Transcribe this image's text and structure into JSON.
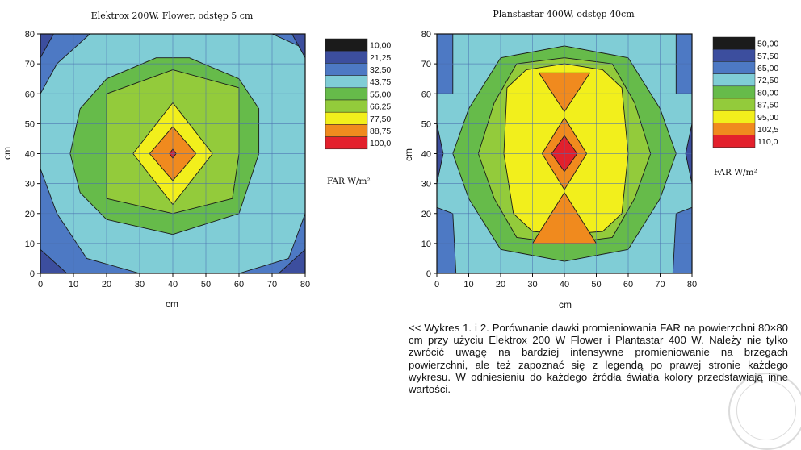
{
  "chart_data": [
    {
      "type": "heatmap",
      "subtype": "filled-contour",
      "title": "Elektrox 200W, Flower, odstęp 5 cm",
      "xlabel": "cm",
      "ylabel": "cm",
      "xlim": [
        0,
        80
      ],
      "ylim": [
        0,
        80
      ],
      "x_ticks": [
        0,
        10,
        20,
        30,
        40,
        50,
        60,
        70,
        80
      ],
      "y_ticks": [
        0,
        10,
        20,
        30,
        40,
        50,
        60,
        70,
        80
      ],
      "grid": true,
      "legend_position": "right",
      "legend_unit_label": "FAR W/m²",
      "levels": [
        "10,00",
        "21,25",
        "32,50",
        "43,75",
        "55,00",
        "66,25",
        "77,50",
        "88,75",
        "100,0"
      ],
      "level_colors": [
        "#1b1b1b",
        "#3c4e9e",
        "#4d79c4",
        "#80cdd6",
        "#66bb4a",
        "#93cb3b",
        "#f2ef1c",
        "#f08a1e",
        "#e3202c"
      ],
      "fill_regions": [
        {
          "level_index": 2,
          "points": [
            [
              0,
              0
            ],
            [
              80,
              0
            ],
            [
              80,
              80
            ],
            [
              0,
              80
            ]
          ]
        },
        {
          "level_index": 3,
          "points": [
            [
              0,
              35
            ],
            [
              5,
              20
            ],
            [
              14,
              5
            ],
            [
              30,
              0
            ],
            [
              60,
              0
            ],
            [
              75,
              5
            ],
            [
              80,
              20
            ],
            [
              80,
              75
            ],
            [
              70,
              80
            ],
            [
              15,
              80
            ],
            [
              5,
              70
            ],
            [
              0,
              60
            ]
          ]
        },
        {
          "level_index": 4,
          "points": [
            [
              9,
              40
            ],
            [
              12,
              27
            ],
            [
              20,
              18
            ],
            [
              40,
              13
            ],
            [
              60,
              20
            ],
            [
              66,
              40
            ],
            [
              66,
              55
            ],
            [
              60,
              65
            ],
            [
              45,
              72
            ],
            [
              35,
              72
            ],
            [
              20,
              65
            ],
            [
              12,
              55
            ]
          ]
        },
        {
          "level_index": 5,
          "points": [
            [
              20,
              40
            ],
            [
              20,
              25
            ],
            [
              40,
              20
            ],
            [
              58,
              25
            ],
            [
              60,
              40
            ],
            [
              60,
              62
            ],
            [
              40,
              68
            ],
            [
              20,
              60
            ]
          ]
        },
        {
          "level_index": 6,
          "points": [
            [
              28,
              40
            ],
            [
              40,
              57
            ],
            [
              52,
              40
            ],
            [
              40,
              23
            ]
          ]
        },
        {
          "level_index": 7,
          "points": [
            [
              33,
              40
            ],
            [
              40,
              49
            ],
            [
              47,
              40
            ],
            [
              40,
              31
            ]
          ]
        },
        {
          "level_index": 8,
          "points": [
            [
              39,
              40
            ],
            [
              40,
              41.5
            ],
            [
              41,
              40
            ],
            [
              40,
              38.5
            ]
          ]
        }
      ],
      "corner_patches": [
        {
          "level_index": 1,
          "points": [
            [
              0,
              0
            ],
            [
              8,
              0
            ],
            [
              0,
              8
            ]
          ]
        },
        {
          "level_index": 1,
          "points": [
            [
              80,
              0
            ],
            [
              72,
              0
            ],
            [
              80,
              8
            ]
          ]
        },
        {
          "level_index": 1,
          "points": [
            [
              0,
              80
            ],
            [
              4,
              80
            ],
            [
              0,
              72
            ]
          ]
        },
        {
          "level_index": 1,
          "points": [
            [
              80,
              80
            ],
            [
              76,
              80
            ],
            [
              80,
              72
            ]
          ]
        }
      ]
    },
    {
      "type": "heatmap",
      "subtype": "filled-contour",
      "title": "Planstastar 400W, odstęp 40cm",
      "xlabel": "cm",
      "ylabel": "cm",
      "xlim": [
        0,
        80
      ],
      "ylim": [
        0,
        80
      ],
      "x_ticks": [
        0,
        10,
        20,
        30,
        40,
        50,
        60,
        70,
        80
      ],
      "y_ticks": [
        0,
        10,
        20,
        30,
        40,
        50,
        60,
        70,
        80
      ],
      "grid": true,
      "legend_position": "right",
      "legend_unit_label": "FAR W/m²",
      "levels": [
        "50,00",
        "57,50",
        "65,00",
        "72,50",
        "80,00",
        "87,50",
        "95,00",
        "102,5",
        "110,0"
      ],
      "level_colors": [
        "#1b1b1b",
        "#3c4e9e",
        "#4d79c4",
        "#80cdd6",
        "#66bb4a",
        "#93cb3b",
        "#f2ef1c",
        "#f08a1e",
        "#e3202c"
      ],
      "fill_regions": [
        {
          "level_index": 3,
          "points": [
            [
              0,
              0
            ],
            [
              80,
              0
            ],
            [
              80,
              80
            ],
            [
              0,
              80
            ]
          ]
        },
        {
          "level_index": 2,
          "points": [
            [
              0,
              0
            ],
            [
              6,
              0
            ],
            [
              5,
              20
            ],
            [
              0,
              22
            ]
          ]
        },
        {
          "level_index": 2,
          "points": [
            [
              80,
              0
            ],
            [
              74,
              0
            ],
            [
              75,
              20
            ],
            [
              80,
              22
            ]
          ]
        },
        {
          "level_index": 2,
          "points": [
            [
              0,
              60
            ],
            [
              5,
              60
            ],
            [
              5,
              80
            ],
            [
              0,
              80
            ]
          ]
        },
        {
          "level_index": 2,
          "points": [
            [
              80,
              60
            ],
            [
              75,
              60
            ],
            [
              75,
              80
            ],
            [
              80,
              80
            ]
          ]
        },
        {
          "level_index": 1,
          "points": [
            [
              0,
              30
            ],
            [
              2,
              40
            ],
            [
              0,
              50
            ]
          ]
        },
        {
          "level_index": 1,
          "points": [
            [
              80,
              30
            ],
            [
              78,
              40
            ],
            [
              80,
              50
            ]
          ]
        },
        {
          "level_index": 4,
          "points": [
            [
              5,
              40
            ],
            [
              10,
              25
            ],
            [
              20,
              8
            ],
            [
              40,
              4
            ],
            [
              60,
              8
            ],
            [
              70,
              25
            ],
            [
              75,
              40
            ],
            [
              70,
              55
            ],
            [
              60,
              72
            ],
            [
              40,
              76
            ],
            [
              20,
              72
            ],
            [
              10,
              55
            ]
          ]
        },
        {
          "level_index": 5,
          "points": [
            [
              13,
              40
            ],
            [
              18,
              25
            ],
            [
              25,
              12
            ],
            [
              40,
              10
            ],
            [
              55,
              12
            ],
            [
              62,
              25
            ],
            [
              67,
              40
            ],
            [
              62,
              57
            ],
            [
              55,
              70
            ],
            [
              40,
              72
            ],
            [
              25,
              70
            ],
            [
              18,
              57
            ]
          ]
        },
        {
          "level_index": 6,
          "points": [
            [
              21,
              40
            ],
            [
              24,
              20
            ],
            [
              30,
              14
            ],
            [
              40,
              13
            ],
            [
              52,
              14
            ],
            [
              58,
              20
            ],
            [
              60,
              40
            ],
            [
              58,
              62
            ],
            [
              52,
              68
            ],
            [
              40,
              70
            ],
            [
              28,
              68
            ],
            [
              22,
              62
            ]
          ]
        },
        {
          "level_index": 7,
          "points": [
            [
              30,
              10
            ],
            [
              40,
              27
            ],
            [
              50,
              10
            ]
          ]
        },
        {
          "level_index": 7,
          "points": [
            [
              33,
              40
            ],
            [
              40,
              52
            ],
            [
              47,
              40
            ],
            [
              40,
              28
            ]
          ]
        },
        {
          "level_index": 7,
          "points": [
            [
              32,
              67
            ],
            [
              48,
              67
            ],
            [
              40,
              54
            ]
          ]
        },
        {
          "level_index": 8,
          "points": [
            [
              36,
              40
            ],
            [
              40,
              46
            ],
            [
              44,
              40
            ],
            [
              40,
              34
            ]
          ]
        }
      ],
      "corner_patches": []
    }
  ],
  "caption": "<< Wykres 1. i 2. Porównanie dawki promieniowania FAR na powierzchni 80×80 cm przy użyciu Elektrox 200 W Flower i Plantastar 400 W. Należy nie tylko zwrócić uwagę na bardziej intensywne promieniowanie na brzegach powierzchni, ale też zapoznać się z legendą po prawej stronie każdego wykresu. W odniesieniu do każdego źródła światła kolory przedstawiają inne wartości."
}
